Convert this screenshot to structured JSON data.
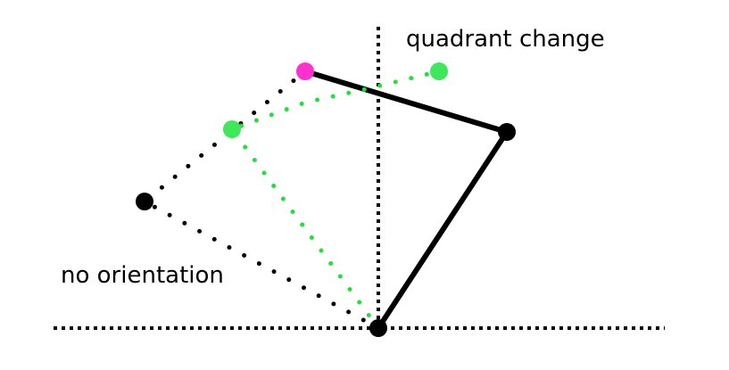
{
  "labels": {
    "quadrant_change": "quadrant change",
    "no_orientation": "no orientation"
  },
  "colors": {
    "background": "#ffffff",
    "line": "#000000",
    "dotted_green": "#22e03a",
    "marker_green": "#3ee85a",
    "marker_magenta": "#ff2fd0",
    "marker_black": "#000000"
  }
}
